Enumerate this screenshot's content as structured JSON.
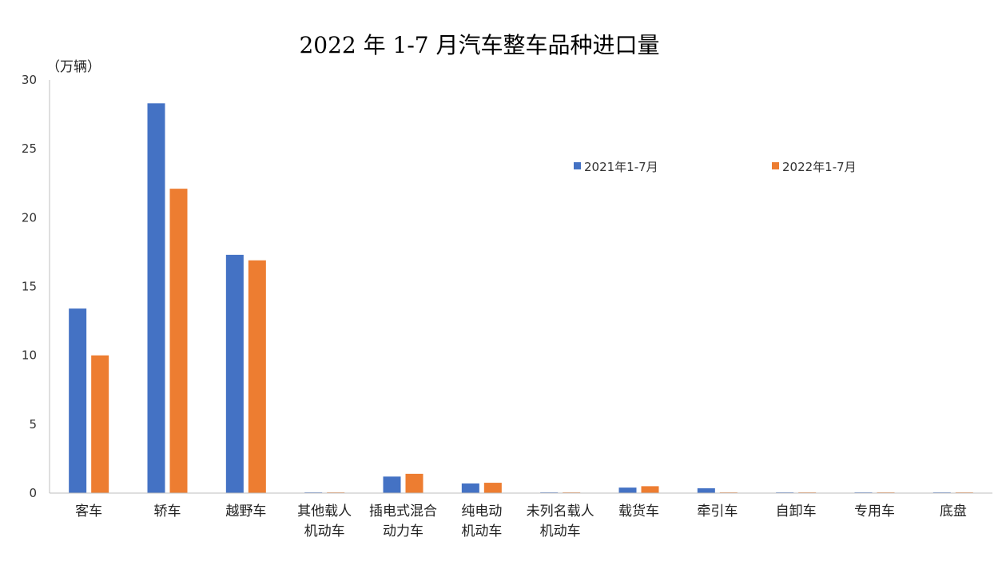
{
  "chart_data": {
    "type": "bar",
    "title": "2022 年 1-7 月汽车整车品种进口量",
    "unit_label": "（万辆）",
    "xlabel": "",
    "ylabel": "",
    "ylim": [
      0,
      30
    ],
    "yticks": [
      0,
      5,
      10,
      15,
      20,
      25,
      30
    ],
    "grid": false,
    "legend_position": "top-right",
    "categories": [
      [
        "客车"
      ],
      [
        "轿车"
      ],
      [
        "越野车"
      ],
      [
        "其他载人",
        "机动车"
      ],
      [
        "插电式混合",
        "动力车"
      ],
      [
        "纯电动",
        "机动车"
      ],
      [
        "未列名载人",
        "机动车"
      ],
      [
        "载货车"
      ],
      [
        "牵引车"
      ],
      [
        "自卸车"
      ],
      [
        "专用车"
      ],
      [
        "底盘"
      ]
    ],
    "series": [
      {
        "name": "2021年1-7月",
        "color": "#4472C4",
        "values": [
          13.4,
          28.3,
          17.3,
          0.05,
          1.2,
          0.7,
          0.05,
          0.4,
          0.35,
          0.05,
          0.05,
          0.05
        ]
      },
      {
        "name": "2022年1-7月",
        "color": "#ED7D31",
        "values": [
          10.0,
          22.1,
          16.9,
          0.05,
          1.4,
          0.75,
          0.05,
          0.5,
          0.05,
          0.05,
          0.05,
          0.05
        ]
      }
    ]
  }
}
